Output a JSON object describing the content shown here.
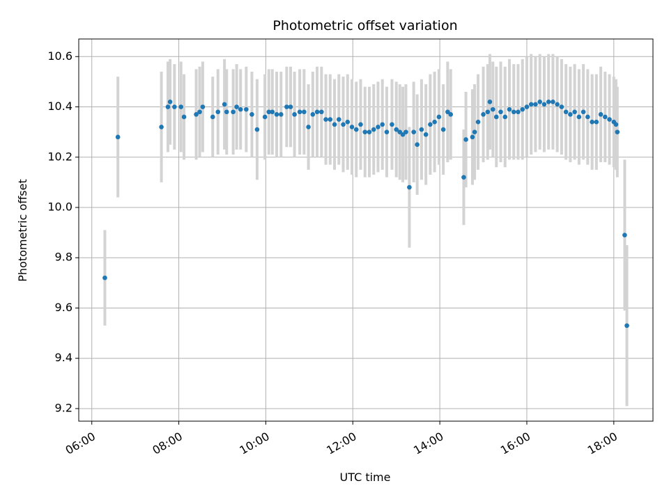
{
  "chart_data": {
    "type": "scatter",
    "title": "Photometric offset variation",
    "xlabel": "UTC time",
    "ylabel": "Photometric offset",
    "x_unit": "hours UTC",
    "xlim": [
      5.7,
      18.9
    ],
    "ylim": [
      9.15,
      10.67
    ],
    "xticks": [
      6,
      8,
      10,
      12,
      14,
      16,
      18
    ],
    "xtick_labels": [
      "06:00",
      "08:00",
      "10:00",
      "12:00",
      "14:00",
      "16:00",
      "18:00"
    ],
    "yticks": [
      9.2,
      9.4,
      9.6,
      9.8,
      10.0,
      10.2,
      10.4,
      10.6
    ],
    "ytick_labels": [
      "9.2",
      "9.4",
      "9.6",
      "9.8",
      "10.0",
      "10.2",
      "10.4",
      "10.6"
    ],
    "grid": true,
    "point_color": "#1f77b4",
    "errorbar_color": "#d3d3d3",
    "series": [
      {
        "x": [
          6.3,
          6.6,
          7.6,
          7.75,
          7.8,
          7.9,
          8.05,
          8.12,
          8.4,
          8.48,
          8.55,
          8.78,
          8.9,
          9.05,
          9.1,
          9.25,
          9.33,
          9.42,
          9.55,
          9.68,
          9.8,
          9.98,
          10.07,
          10.15,
          10.25,
          10.35,
          10.48,
          10.57,
          10.66,
          10.78,
          10.88,
          10.98,
          11.08,
          11.18,
          11.28,
          11.38,
          11.48,
          11.58,
          11.68,
          11.78,
          11.88,
          11.98,
          12.08,
          12.18,
          12.28,
          12.38,
          12.48,
          12.58,
          12.68,
          12.78,
          12.9,
          13.0,
          13.08,
          13.15,
          13.22,
          13.3,
          13.4,
          13.48,
          13.58,
          13.68,
          13.78,
          13.88,
          13.98,
          14.08,
          14.18,
          14.25,
          14.55,
          14.6,
          14.75,
          14.8,
          14.88,
          15.0,
          15.1,
          15.15,
          15.22,
          15.3,
          15.4,
          15.5,
          15.6,
          15.7,
          15.8,
          15.9,
          16.0,
          16.1,
          16.2,
          16.3,
          16.4,
          16.5,
          16.6,
          16.7,
          16.8,
          16.9,
          17.0,
          17.1,
          17.2,
          17.3,
          17.4,
          17.5,
          17.6,
          17.7,
          17.8,
          17.9,
          18.0,
          18.05,
          18.08,
          18.25,
          18.3
        ],
        "y": [
          9.72,
          10.28,
          10.32,
          10.4,
          10.42,
          10.4,
          10.4,
          10.36,
          10.37,
          10.38,
          10.4,
          10.36,
          10.38,
          10.41,
          10.38,
          10.38,
          10.4,
          10.39,
          10.39,
          10.37,
          10.31,
          10.36,
          10.38,
          10.38,
          10.37,
          10.37,
          10.4,
          10.4,
          10.37,
          10.38,
          10.38,
          10.32,
          10.37,
          10.38,
          10.38,
          10.35,
          10.35,
          10.33,
          10.35,
          10.33,
          10.34,
          10.32,
          10.31,
          10.33,
          10.3,
          10.3,
          10.31,
          10.32,
          10.33,
          10.3,
          10.33,
          10.31,
          10.3,
          10.29,
          10.3,
          10.08,
          10.3,
          10.25,
          10.31,
          10.29,
          10.33,
          10.34,
          10.36,
          10.31,
          10.38,
          10.37,
          10.12,
          10.27,
          10.28,
          10.3,
          10.34,
          10.37,
          10.38,
          10.42,
          10.39,
          10.36,
          10.38,
          10.36,
          10.39,
          10.38,
          10.38,
          10.39,
          10.4,
          10.41,
          10.41,
          10.42,
          10.41,
          10.42,
          10.42,
          10.41,
          10.4,
          10.38,
          10.37,
          10.38,
          10.36,
          10.38,
          10.36,
          10.34,
          10.34,
          10.37,
          10.36,
          10.35,
          10.34,
          10.33,
          10.3,
          9.89,
          9.53
        ],
        "yerr": [
          0.19,
          0.24,
          0.22,
          0.18,
          0.17,
          0.17,
          0.18,
          0.17,
          0.18,
          0.18,
          0.18,
          0.16,
          0.17,
          0.18,
          0.17,
          0.17,
          0.17,
          0.16,
          0.17,
          0.17,
          0.2,
          0.17,
          0.17,
          0.17,
          0.17,
          0.17,
          0.16,
          0.16,
          0.17,
          0.17,
          0.17,
          0.17,
          0.17,
          0.18,
          0.18,
          0.18,
          0.18,
          0.18,
          0.18,
          0.19,
          0.19,
          0.19,
          0.19,
          0.18,
          0.18,
          0.18,
          0.18,
          0.18,
          0.18,
          0.18,
          0.18,
          0.19,
          0.19,
          0.19,
          0.19,
          0.24,
          0.2,
          0.2,
          0.2,
          0.2,
          0.2,
          0.2,
          0.19,
          0.18,
          0.2,
          0.18,
          0.19,
          0.19,
          0.19,
          0.19,
          0.19,
          0.19,
          0.19,
          0.19,
          0.19,
          0.2,
          0.2,
          0.2,
          0.2,
          0.19,
          0.19,
          0.2,
          0.2,
          0.2,
          0.19,
          0.19,
          0.19,
          0.19,
          0.19,
          0.19,
          0.19,
          0.19,
          0.19,
          0.19,
          0.19,
          0.19,
          0.19,
          0.19,
          0.19,
          0.19,
          0.18,
          0.18,
          0.18,
          0.18,
          0.18,
          0.3,
          0.32
        ]
      }
    ]
  }
}
